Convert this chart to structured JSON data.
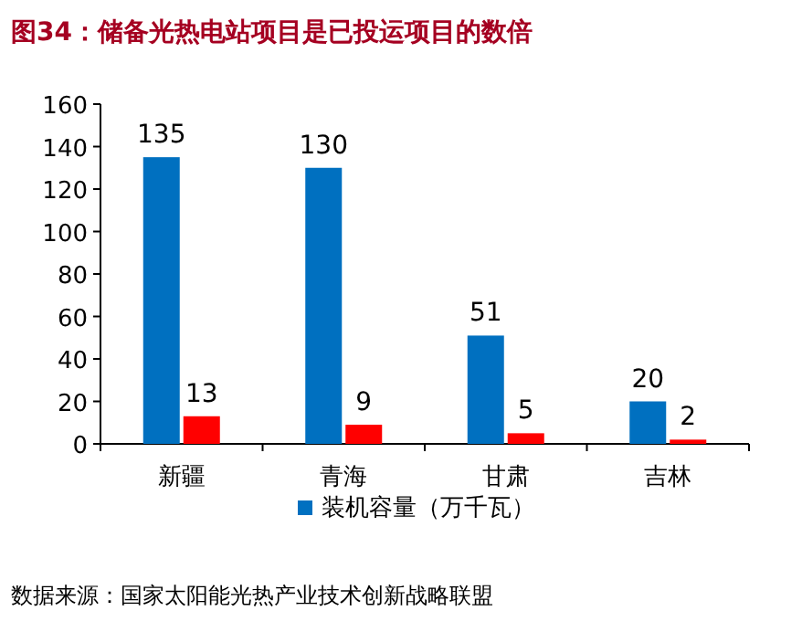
{
  "chart_data": {
    "type": "bar",
    "title": "图34：储备光热电站项目是已投运项目的数倍",
    "categories": [
      "新疆",
      "青海",
      "甘肃",
      "吉林"
    ],
    "series": [
      {
        "name": "装机容量（万千瓦）",
        "color": "#0070c0",
        "values": [
          135,
          130,
          51,
          20
        ]
      },
      {
        "color": "#ff0000",
        "values": [
          13,
          9,
          5,
          2
        ]
      }
    ],
    "ylim": [
      0,
      160
    ],
    "yticks": [
      0,
      20,
      40,
      60,
      80,
      100,
      120,
      140,
      160
    ],
    "data_labels": true,
    "legend": "bottom",
    "grid": false,
    "annotations": [
      "数据来源：国家太阳能光热产业技术创新战略联盟"
    ]
  }
}
